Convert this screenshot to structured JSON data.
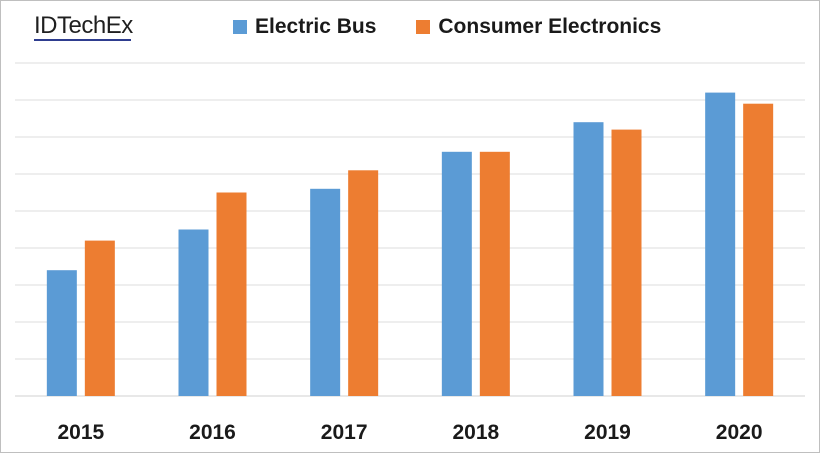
{
  "brand": {
    "logo_text": "IDTechEx"
  },
  "chart_data": {
    "type": "bar",
    "title": "",
    "xlabel": "",
    "ylabel": "",
    "categories": [
      "2015",
      "2016",
      "2017",
      "2018",
      "2019",
      "2020"
    ],
    "series": [
      {
        "name": "Electric Bus",
        "color": "#5b9bd5",
        "values": [
          3.4,
          4.5,
          5.6,
          6.6,
          7.4,
          8.2
        ]
      },
      {
        "name": "Consumer Electronics",
        "color": "#ed7d31",
        "values": [
          4.2,
          5.5,
          6.1,
          6.6,
          7.2,
          7.9
        ]
      }
    ],
    "ylim": [
      0,
      9
    ],
    "grid": true,
    "legend_position": "top"
  }
}
